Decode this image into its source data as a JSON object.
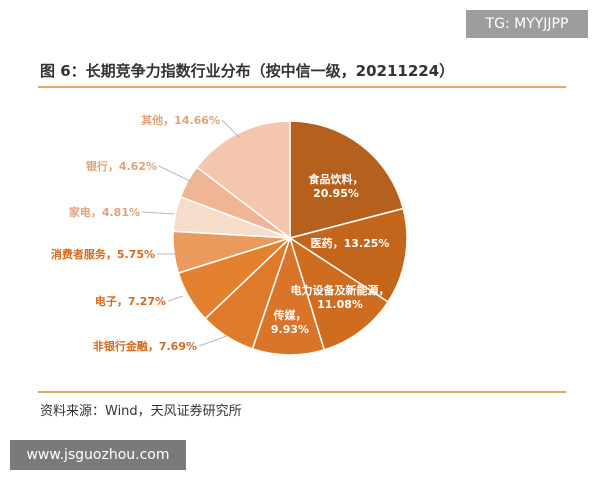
{
  "watermark_top": "TG: MYYJJPP",
  "watermark_bottom": "www.jsguozhou.com",
  "source": "资料来源：Wind，天风证券研究所",
  "chart_data": {
    "type": "pie",
    "title": "图 6：长期竞争力指数行业分布（按中信一级，20211224）",
    "slices": [
      {
        "label": "食品饮料",
        "value": 20.95,
        "display": "20.95%",
        "color": "#b5601c"
      },
      {
        "label": "医药",
        "value": 13.25,
        "display": "13.25%",
        "color": "#c3661c"
      },
      {
        "label": "电力设备及新能源",
        "value": 11.08,
        "display": "11.08%",
        "color": "#cf6c1e"
      },
      {
        "label": "传媒",
        "value": 9.93,
        "display": "9.93%",
        "color": "#d9742a"
      },
      {
        "label": "非银行金融",
        "value": 7.69,
        "display": "7.69%",
        "color": "#de7a2a"
      },
      {
        "label": "电子",
        "value": 7.27,
        "display": "7.27%",
        "color": "#e4812e"
      },
      {
        "label": "消费者服务",
        "value": 5.75,
        "display": "5.75%",
        "color": "#ea9a5c"
      },
      {
        "label": "家电",
        "value": 4.81,
        "display": "4.81%",
        "color": "#f6dccb"
      },
      {
        "label": "银行",
        "value": 4.62,
        "display": "4.62%",
        "color": "#efb595"
      },
      {
        "label": "其他",
        "value": 14.66,
        "display": "14.66%",
        "color": "#f3c6ad"
      }
    ]
  }
}
